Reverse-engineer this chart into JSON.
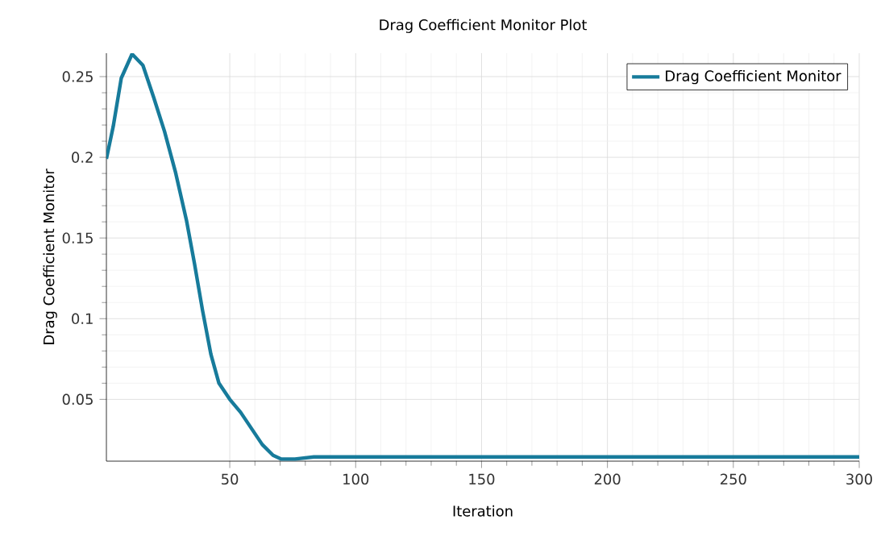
{
  "chart_data": {
    "type": "line",
    "title": "Drag Coefficient Monitor Plot",
    "xlabel": "Iteration",
    "ylabel": "Drag Coefficient Monitor",
    "xlim": [
      1,
      300
    ],
    "ylim": [
      0.0117,
      0.2645
    ],
    "xticks": [
      50,
      100,
      150,
      200,
      250,
      300
    ],
    "yticks": [
      0.05,
      0.1,
      0.15,
      0.2,
      0.25
    ],
    "grid": true,
    "legend": "top right",
    "marker": "none",
    "line_style": "solid",
    "series": [
      {
        "name": "Drag Coefficient Monitor",
        "color": "#177b9b",
        "x": [
          1,
          3.7,
          6.9,
          11.2,
          15.5,
          19.8,
          24.1,
          28.4,
          32.8,
          36,
          39.2,
          42.5,
          45.7,
          50,
          54.3,
          58.6,
          62.9,
          67.2,
          70.5,
          75.9,
          83.4,
          300
        ],
        "values": [
          0.199,
          0.219,
          0.249,
          0.264,
          0.257,
          0.237,
          0.216,
          0.191,
          0.161,
          0.134,
          0.105,
          0.078,
          0.06,
          0.05,
          0.042,
          0.032,
          0.022,
          0.0153,
          0.013,
          0.013,
          0.0143,
          0.0143
        ]
      }
    ]
  }
}
